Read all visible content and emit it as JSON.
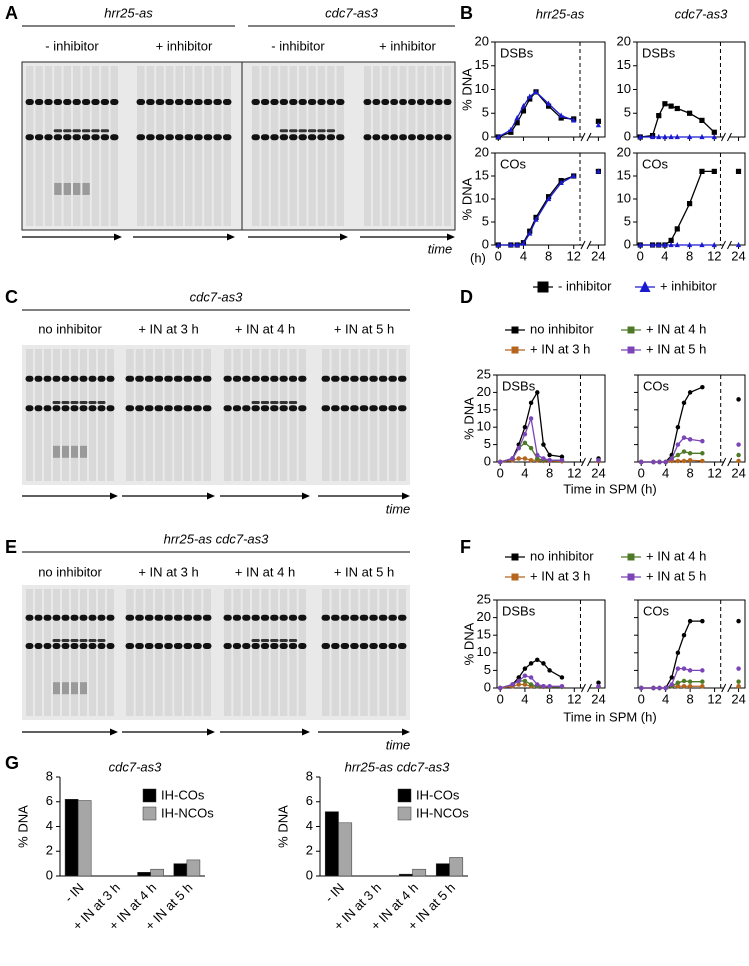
{
  "panel_labels": [
    "A",
    "B",
    "C",
    "D",
    "E",
    "F",
    "G"
  ],
  "gels": [
    {
      "titles": [
        "hrr25-as",
        "cdc7-as3"
      ],
      "lanes": [
        {
          "label": "- inhibitor",
          "color": "#000000"
        },
        {
          "label": "+ inhibitor",
          "color": "#1a1ad0"
        },
        {
          "label": "- inhibitor",
          "color": "#000000"
        },
        {
          "label": "+ inhibitor",
          "color": "#1a1ad0"
        }
      ],
      "axis_label": "time"
    },
    {
      "titles": [
        "cdc7-as3"
      ],
      "lanes": [
        {
          "label": "no inhibitor",
          "color": "#000000"
        },
        {
          "label": "+ IN at 3 h",
          "color": "#b5651d"
        },
        {
          "label": "+ IN at 4 h",
          "color": "#4e7a27"
        },
        {
          "label": "+ IN at 5 h",
          "color": "#7b45b8"
        }
      ],
      "axis_label": "time"
    },
    {
      "titles": [
        "hrr25-as cdc7-as3"
      ],
      "lanes": [
        {
          "label": "no inhibitor",
          "color": "#000000"
        },
        {
          "label": "+ IN at 3 h",
          "color": "#b5651d"
        },
        {
          "label": "+ IN at 4 h",
          "color": "#4e7a27"
        },
        {
          "label": "+ IN at 5 h",
          "color": "#7b45b8"
        }
      ],
      "axis_label": "time"
    }
  ],
  "chart_data": [
    {
      "type": "line",
      "titles": [
        "hrr25-as",
        "cdc7-as3"
      ],
      "ylabel": "% DNA",
      "xlabel": "(h)",
      "x": [
        0,
        2,
        3,
        4,
        5,
        6,
        8,
        10,
        12,
        24
      ],
      "xlim": [
        0,
        24
      ],
      "xticks": [
        0,
        4,
        8,
        12,
        24
      ],
      "ylim": [
        0,
        20
      ],
      "yticks": [
        0,
        5,
        10,
        15,
        20
      ],
      "legend": "bottom",
      "series": [
        {
          "name": "- inhibitor",
          "color": "#000000",
          "marker": "square"
        },
        {
          "name": "+ inhibitor",
          "color": "#1a1ad0",
          "marker": "triangle"
        }
      ],
      "panels": [
        {
          "label": "DSBs",
          "values": [
            [
              0,
              1,
              3,
              5.5,
              8,
              9.5,
              6.5,
              4,
              3.8,
              3.3
            ],
            [
              0,
              1.5,
              4,
              6.5,
              8.5,
              9.5,
              7,
              4.5,
              3.5,
              2.5
            ]
          ]
        },
        {
          "label": "DSBs",
          "values": [
            [
              0,
              0.3,
              4.5,
              7,
              6.5,
              6,
              5,
              3.5,
              1,
              null
            ],
            [
              0,
              0,
              0,
              0,
              0,
              0,
              0,
              0,
              0,
              null
            ]
          ]
        },
        {
          "label": "COs",
          "values": [
            [
              0,
              0,
              0,
              0.5,
              3,
              6,
              10.5,
              14,
              15,
              16
            ],
            [
              0,
              0,
              0,
              0.3,
              2.5,
              5.5,
              10,
              13.5,
              15,
              16
            ]
          ]
        },
        {
          "label": "COs",
          "values": [
            [
              0,
              0,
              0,
              0,
              1,
              3.5,
              9,
              16,
              16,
              16
            ],
            [
              0,
              0,
              0,
              0,
              0,
              0,
              0,
              0,
              0,
              0
            ]
          ]
        }
      ]
    },
    {
      "type": "line",
      "ylabel": "% DNA",
      "xlabel": "Time in SPM (h)",
      "x": [
        0,
        2,
        3,
        4,
        5,
        6,
        7,
        8,
        10,
        24
      ],
      "xlim": [
        0,
        24
      ],
      "xticks": [
        0,
        4,
        8,
        12,
        24
      ],
      "ylim": [
        0,
        25
      ],
      "yticks": [
        0,
        5,
        10,
        15,
        20,
        25
      ],
      "legend": "top",
      "series": [
        {
          "name": "no inhibitor",
          "color": "#000000",
          "marker": "circle"
        },
        {
          "name": "+ IN at 3 h",
          "color": "#b5651d",
          "marker": "circle"
        },
        {
          "name": "+ IN at 4 h",
          "color": "#4e7a27",
          "marker": "circle"
        },
        {
          "name": "+ IN at 5 h",
          "color": "#7b45b8",
          "marker": "circle"
        }
      ],
      "panels": [
        {
          "label": "DSBs",
          "values": [
            [
              0,
              1,
              5,
              10,
              17,
              20,
              5,
              2,
              1.5,
              1
            ],
            [
              0,
              0.5,
              1,
              1,
              0.5,
              0.5,
              0.3,
              0.3,
              0.2,
              0.2
            ],
            [
              0,
              1,
              4,
              5.5,
              4,
              1,
              0.5,
              0.5,
              0.5,
              0.5
            ],
            [
              0,
              1,
              4,
              8,
              12.5,
              2,
              1,
              0.5,
              0.5,
              0.5
            ]
          ]
        },
        {
          "label": "COs",
          "values": [
            [
              0,
              0,
              0,
              0,
              2,
              10,
              17,
              20,
              21.5,
              18
            ],
            [
              0,
              0,
              0,
              0,
              0.3,
              0.3,
              0.3,
              0.5,
              0.3,
              0.3
            ],
            [
              0,
              0,
              0,
              0,
              1,
              2,
              3,
              2.5,
              2.5,
              2
            ],
            [
              0,
              0,
              0,
              0,
              1,
              5,
              7,
              6.5,
              6,
              5
            ]
          ]
        }
      ]
    },
    {
      "type": "line",
      "ylabel": "% DNA",
      "xlabel": "Time in SPM (h)",
      "x": [
        0,
        2,
        3,
        4,
        5,
        6,
        7,
        8,
        10,
        24
      ],
      "xlim": [
        0,
        24
      ],
      "xticks": [
        0,
        4,
        8,
        12,
        24
      ],
      "ylim": [
        0,
        25
      ],
      "yticks": [
        0,
        5,
        10,
        15,
        20,
        25
      ],
      "legend": "top",
      "series": [
        {
          "name": "no inhibitor",
          "color": "#000000",
          "marker": "circle"
        },
        {
          "name": "+ IN at 3 h",
          "color": "#b5651d",
          "marker": "circle"
        },
        {
          "name": "+ IN at 4 h",
          "color": "#4e7a27",
          "marker": "circle"
        },
        {
          "name": "+ IN at 5 h",
          "color": "#7b45b8",
          "marker": "circle"
        }
      ],
      "panels": [
        {
          "label": "DSBs",
          "values": [
            [
              0,
              1,
              3,
              5.5,
              7,
              8,
              7,
              5,
              3,
              1.5
            ],
            [
              0,
              0.5,
              1,
              1,
              0.5,
              0.5,
              0.3,
              0.3,
              0.3,
              0.3
            ],
            [
              0,
              1,
              2,
              2,
              1,
              0.5,
              0.5,
              0.3,
              0.3,
              0.3
            ],
            [
              0,
              1,
              2,
              3.5,
              3,
              1,
              0.5,
              0.5,
              0.5,
              0.5
            ]
          ]
        },
        {
          "label": "COs",
          "values": [
            [
              0,
              0,
              0,
              0,
              3,
              10,
              15,
              19,
              19,
              19
            ],
            [
              0,
              0,
              0,
              0,
              0.5,
              0.5,
              0.5,
              0.5,
              0.5,
              0.5
            ],
            [
              0,
              0,
              0,
              0,
              0.5,
              1.5,
              2,
              1.8,
              1.8,
              1.8
            ],
            [
              0,
              0,
              0,
              0,
              1,
              5.5,
              5.5,
              5,
              5,
              5.5
            ]
          ]
        }
      ]
    },
    {
      "type": "bar",
      "title": "cdc7-as3",
      "ylabel": "% DNA",
      "categories": [
        "- IN",
        "+ IN at 3 h",
        "+ IN at 4 h",
        "+ IN at 5 h"
      ],
      "category_colors": [
        "#000000",
        "#b5651d",
        "#4e7a27",
        "#4b3a8c"
      ],
      "series": [
        {
          "name": "IH-COs",
          "color": "#000000",
          "values": [
            6.2,
            0,
            0.3,
            1.0
          ]
        },
        {
          "name": "IH-NCOs",
          "color": "#a6a6a6",
          "values": [
            6.1,
            0,
            0.55,
            1.3
          ]
        }
      ],
      "ylim": [
        0,
        8
      ],
      "yticks": [
        0,
        2,
        4,
        6,
        8
      ]
    },
    {
      "type": "bar",
      "title": "hrr25-as cdc7-as3",
      "ylabel": "% DNA",
      "categories": [
        "- IN",
        "+ IN at 3 h",
        "+ IN at 4 h",
        "+ IN at 5 h"
      ],
      "category_colors": [
        "#000000",
        "#b5651d",
        "#4e7a27",
        "#4b3a8c"
      ],
      "series": [
        {
          "name": "IH-COs",
          "color": "#000000",
          "values": [
            5.2,
            0,
            0.15,
            1.0
          ]
        },
        {
          "name": "IH-NCOs",
          "color": "#a6a6a6",
          "values": [
            4.3,
            0,
            0.55,
            1.5
          ]
        }
      ],
      "ylim": [
        0,
        8
      ],
      "yticks": [
        0,
        2,
        4,
        6,
        8
      ]
    }
  ]
}
